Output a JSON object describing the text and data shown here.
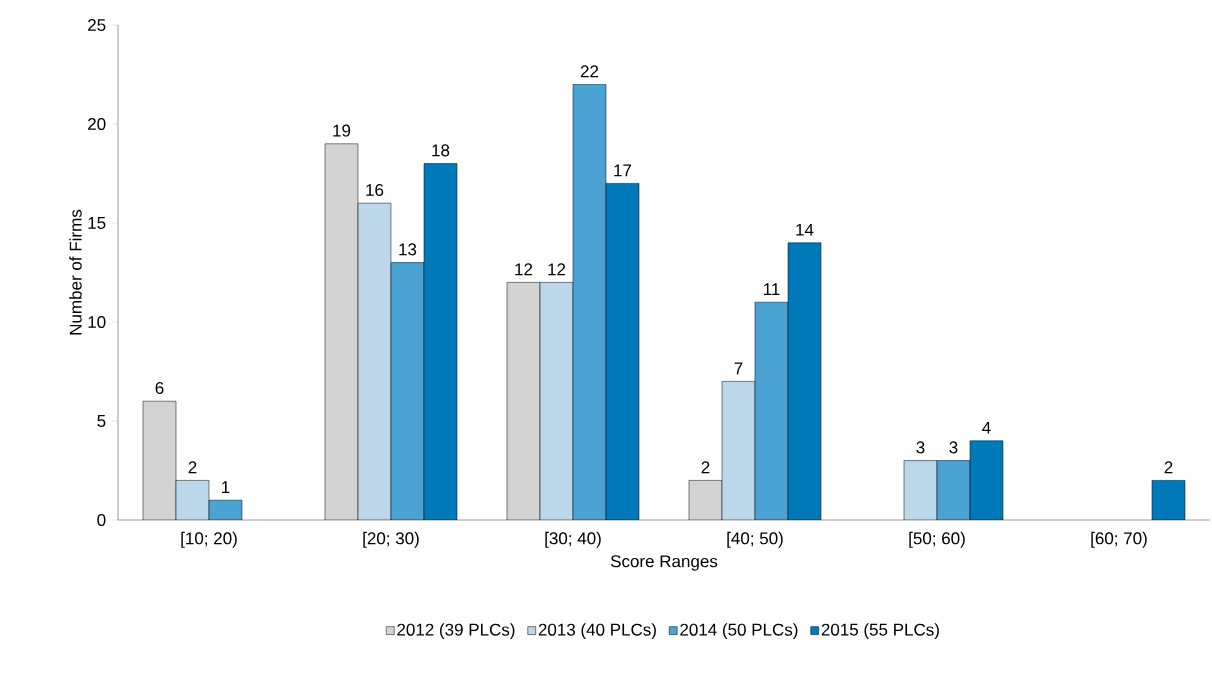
{
  "chart_data": {
    "type": "bar",
    "xlabel": "Score Ranges",
    "ylabel": "Number of Firms",
    "categories": [
      "[10; 20)",
      "[20; 30)",
      "[30; 40)",
      "[40; 50)",
      "[50; 60)",
      "[60; 70)"
    ],
    "series": [
      {
        "name": "2012 (39 PLCs)",
        "color": "#d3d3d3",
        "values": [
          6,
          19,
          12,
          2,
          null,
          null
        ]
      },
      {
        "name": "2013 (40 PLCs)",
        "color": "#bdd7ea",
        "values": [
          2,
          16,
          12,
          7,
          3,
          null
        ]
      },
      {
        "name": "2014 (50 PLCs)",
        "color": "#4ba3d3",
        "values": [
          1,
          13,
          22,
          11,
          3,
          null
        ]
      },
      {
        "name": "2015 (55 PLCs)",
        "color": "#0079b9",
        "values": [
          null,
          18,
          17,
          14,
          4,
          2
        ]
      }
    ],
    "ylim": [
      0,
      25
    ],
    "yticks": [
      0,
      5,
      10,
      15,
      20,
      25
    ],
    "grid": false,
    "legend": "bottom",
    "data_labels": true
  }
}
